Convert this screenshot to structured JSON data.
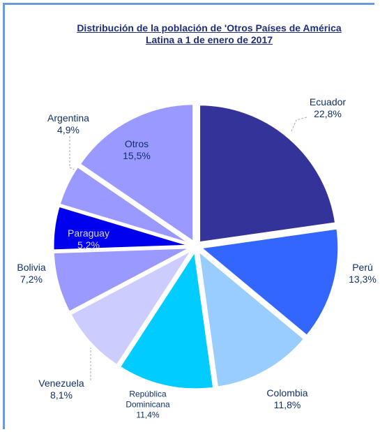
{
  "chart_data": {
    "type": "pie",
    "title": "Distribución de la población de 'Otros Países de América Latina a 1 de enero de 2017",
    "categories": [
      "Ecuador",
      "Perú",
      "Colombia",
      "República Dominicana",
      "Venezuela",
      "Bolivia",
      "Paraguay",
      "Argentina",
      "Otros"
    ],
    "values": [
      22.8,
      13.3,
      11.8,
      11.4,
      8.1,
      7.2,
      5.2,
      4.9,
      15.5
    ],
    "value_labels": [
      "22,8%",
      "13,3%",
      "11,8%",
      "11,4%",
      "8,1%",
      "7,2%",
      "5,2%",
      "4,9%",
      "15,5%"
    ],
    "colors": [
      "#333399",
      "#3366ff",
      "#99ccff",
      "#00ccff",
      "#ccccff",
      "#9999ff",
      "#0000ee",
      "#9999ff",
      "#9999ff"
    ]
  }
}
